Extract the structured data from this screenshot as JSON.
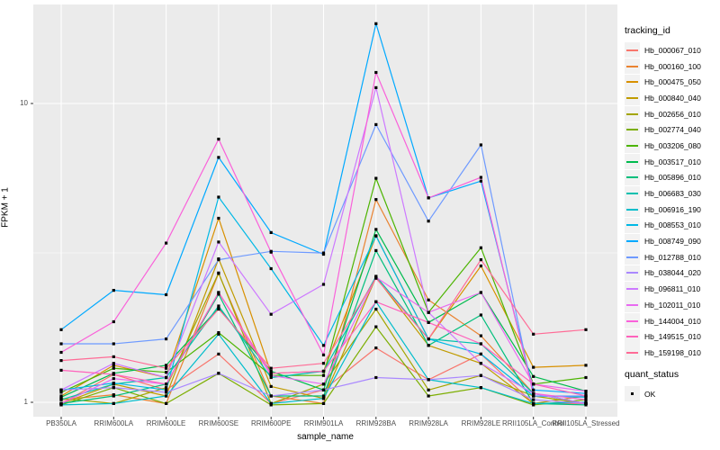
{
  "chart_data": {
    "type": "line",
    "xlabel": "sample_name",
    "ylabel": "FPKM + 1",
    "y_scale": "log10",
    "y_ticks": [
      "1",
      "10"
    ],
    "ylim": [
      0.9,
      21.4
    ],
    "grid": true,
    "panel_bg": "#EBEBEB",
    "grid_color": "#FFFFFF",
    "point_color": "#000000",
    "axis_text_color": "#4D4D4D",
    "categories": [
      "PB350LA",
      "RRIM600LA",
      "RRIM600LE",
      "RRIM600SE",
      "RRIM600PE",
      "RRIM901LA",
      "RRIM928BA",
      "RRIM928LA",
      "RRIM928LE",
      "RRII105LA_Control",
      "RRII105LA_Stressed"
    ],
    "legend": {
      "title": "tracking_id",
      "position": "right",
      "key_bg": "#F2F2F2"
    },
    "quant_status": {
      "title": "quant_status",
      "items": [
        {
          "label": "OK",
          "shape": "square",
          "color": "#000000"
        }
      ]
    },
    "series": [
      {
        "name": "Hb_000067_010",
        "color": "#F8766D",
        "values": [
          0.99,
          1.24,
          1.1,
          1.45,
          0.99,
          1.1,
          1.52,
          1.19,
          1.45,
          0.99,
          0.99
        ]
      },
      {
        "name": "Hb_000160_100",
        "color": "#EA8331",
        "values": [
          1.02,
          1.06,
          0.99,
          2.7,
          1.05,
          0.99,
          4.77,
          2.2,
          1.67,
          1.07,
          0.99
        ]
      },
      {
        "name": "Hb_000475_050",
        "color": "#D89000",
        "values": [
          1.05,
          1.33,
          1.21,
          4.13,
          1.25,
          1.27,
          3.61,
          1.63,
          2.86,
          1.31,
          1.33
        ]
      },
      {
        "name": "Hb_000840_040",
        "color": "#C09B00",
        "values": [
          0.99,
          1.15,
          1.05,
          3.02,
          1.13,
          1.03,
          2.62,
          1.55,
          1.35,
          0.99,
          1.05
        ]
      },
      {
        "name": "Hb_002656_010",
        "color": "#A3A500",
        "values": [
          1.03,
          0.99,
          1.12,
          2.71,
          0.99,
          1.15,
          2.05,
          1.1,
          1.23,
          1.05,
          0.99
        ]
      },
      {
        "name": "Hb_002774_040",
        "color": "#7CAE00",
        "values": [
          0.98,
          1.12,
          0.99,
          1.25,
          0.98,
          0.99,
          1.79,
          1.05,
          1.12,
          0.98,
          1.02
        ]
      },
      {
        "name": "Hb_003206_080",
        "color": "#4CB400",
        "values": [
          1.08,
          1.3,
          1.26,
          1.71,
          1.23,
          1.23,
          5.62,
          2.0,
          3.29,
          1.15,
          1.21
        ]
      },
      {
        "name": "Hb_003517_010",
        "color": "#00BB4E",
        "values": [
          1.04,
          1.25,
          1.33,
          2.07,
          1.27,
          1.1,
          3.79,
          1.85,
          2.33,
          1.22,
          1.09
        ]
      },
      {
        "name": "Hb_005896_010",
        "color": "#00BF7C",
        "values": [
          0.99,
          1.05,
          1.15,
          2.3,
          1.05,
          1.05,
          3.22,
          1.55,
          1.96,
          0.99,
          0.98
        ]
      },
      {
        "name": "Hb_006683_030",
        "color": "#00C0AF",
        "values": [
          1.02,
          1.15,
          1.21,
          2.1,
          1.21,
          1.27,
          2.64,
          1.63,
          1.57,
          1.07,
          0.99
        ]
      },
      {
        "name": "Hb_006916_190",
        "color": "#00BDCB",
        "values": [
          0.98,
          0.99,
          1.05,
          1.69,
          0.99,
          1.03,
          2.17,
          1.19,
          1.12,
          0.99,
          1.0
        ]
      },
      {
        "name": "Hb_008553_010",
        "color": "#00B8E5",
        "values": [
          1.1,
          1.16,
          1.1,
          4.86,
          2.8,
          1.55,
          3.6,
          1.63,
          1.45,
          1.05,
          1.04
        ]
      },
      {
        "name": "Hb_008749_090",
        "color": "#00A9FF",
        "values": [
          1.75,
          2.37,
          2.29,
          6.6,
          3.7,
          3.13,
          18.5,
          4.83,
          5.5,
          1.1,
          1.07
        ]
      },
      {
        "name": "Hb_012788_010",
        "color": "#6E9AFF",
        "values": [
          1.57,
          1.57,
          1.63,
          3.0,
          3.2,
          3.16,
          8.5,
          4.04,
          7.27,
          1.05,
          1.05
        ]
      },
      {
        "name": "Hb_038044_020",
        "color": "#AA88FF",
        "values": [
          1.1,
          1.12,
          1.08,
          1.25,
          1.05,
          1.1,
          1.21,
          1.19,
          1.23,
          1.02,
          0.99
        ]
      },
      {
        "name": "Hb_096811_010",
        "color": "#CD79FF",
        "values": [
          1.1,
          1.35,
          1.21,
          3.44,
          1.97,
          2.48,
          11.3,
          2.0,
          1.35,
          1.07,
          0.99
        ]
      },
      {
        "name": "Hb_102011_010",
        "color": "#E86AF1",
        "values": [
          0.99,
          1.2,
          1.15,
          2.33,
          1.23,
          1.15,
          2.62,
          2.0,
          2.33,
          1.15,
          1.09
        ]
      },
      {
        "name": "Hb_144004_010",
        "color": "#FA61DA",
        "values": [
          1.47,
          1.86,
          3.41,
          7.6,
          3.18,
          1.44,
          12.7,
          4.83,
          5.66,
          1.07,
          1.02
        ]
      },
      {
        "name": "Hb_149515_010",
        "color": "#FF62BC",
        "values": [
          1.28,
          1.24,
          1.15,
          2.33,
          1.25,
          1.27,
          2.17,
          1.85,
          1.57,
          1.15,
          1.05
        ]
      },
      {
        "name": "Hb_159198_010",
        "color": "#FF6B96",
        "values": [
          1.38,
          1.42,
          1.3,
          2.05,
          1.3,
          1.35,
          2.6,
          1.63,
          3.0,
          1.69,
          1.75
        ]
      }
    ]
  }
}
